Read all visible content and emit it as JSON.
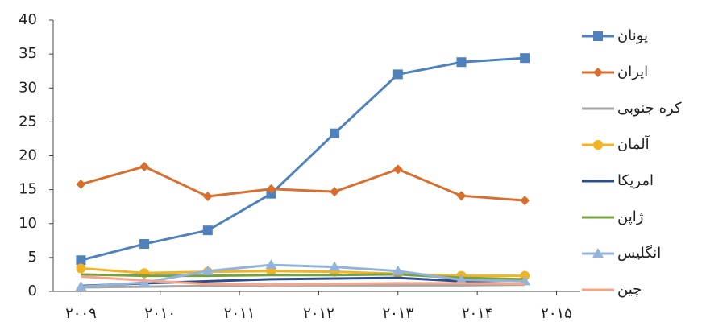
{
  "chart_data": {
    "type": "line",
    "x": [
      2009,
      2009.8,
      2010.6,
      2011.4,
      2012.2,
      2013,
      2013.8,
      2014.6
    ],
    "xlim": [
      2008.65,
      2015.3
    ],
    "xticks": [
      {
        "value": 2009,
        "label": "۲۰۰۹"
      },
      {
        "value": 2010,
        "label": "۲۰۱۰"
      },
      {
        "value": 2011,
        "label": "۲۰۱۱"
      },
      {
        "value": 2012,
        "label": "۲۰۱۲"
      },
      {
        "value": 2013,
        "label": "۲۰۱۳"
      },
      {
        "value": 2014,
        "label": "۲۰۱۴"
      },
      {
        "value": 2015,
        "label": "۲۰۱۵"
      }
    ],
    "ylim": [
      0,
      40
    ],
    "yticks": [
      0,
      5,
      10,
      15,
      20,
      25,
      30,
      35,
      40
    ],
    "legend": "right",
    "series": [
      {
        "name": "یونان",
        "color": "#4f81bd",
        "marker": "square",
        "values": [
          4.6,
          7.0,
          9.0,
          14.4,
          23.3,
          32.0,
          33.8,
          34.4
        ]
      },
      {
        "name": "ایران",
        "color": "#d86f2e",
        "marker": "diamond",
        "values": [
          15.8,
          18.4,
          14.0,
          15.1,
          14.7,
          18.0,
          14.1,
          13.4
        ]
      },
      {
        "name": "کره جنوبی",
        "color": "#a5a5a5",
        "marker": "none",
        "values": [
          0.6,
          0.7,
          0.8,
          0.9,
          0.9,
          0.9,
          0.9,
          1.0
        ]
      },
      {
        "name": "آلمان",
        "color": "#f0b323",
        "marker": "circle",
        "values": [
          3.4,
          2.7,
          2.9,
          3.0,
          2.9,
          2.6,
          2.3,
          2.3
        ]
      },
      {
        "name": "امریکا",
        "color": "#2e4d8f",
        "marker": "none",
        "values": [
          0.8,
          1.2,
          1.5,
          1.8,
          1.9,
          2.0,
          1.5,
          1.6
        ]
      },
      {
        "name": "ژاپن",
        "color": "#77a040",
        "marker": "none",
        "values": [
          2.5,
          2.3,
          2.3,
          2.4,
          2.4,
          2.5,
          2.0,
          1.8
        ]
      },
      {
        "name": "انگلیس",
        "color": "#93b3db",
        "marker": "triangle",
        "values": [
          0.7,
          1.3,
          3.0,
          3.9,
          3.6,
          3.0,
          1.7,
          1.5
        ]
      },
      {
        "name": "چین",
        "color": "#f4a58a",
        "marker": "none",
        "values": [
          2.2,
          1.6,
          1.1,
          1.0,
          1.1,
          1.2,
          1.2,
          1.1
        ]
      }
    ]
  }
}
